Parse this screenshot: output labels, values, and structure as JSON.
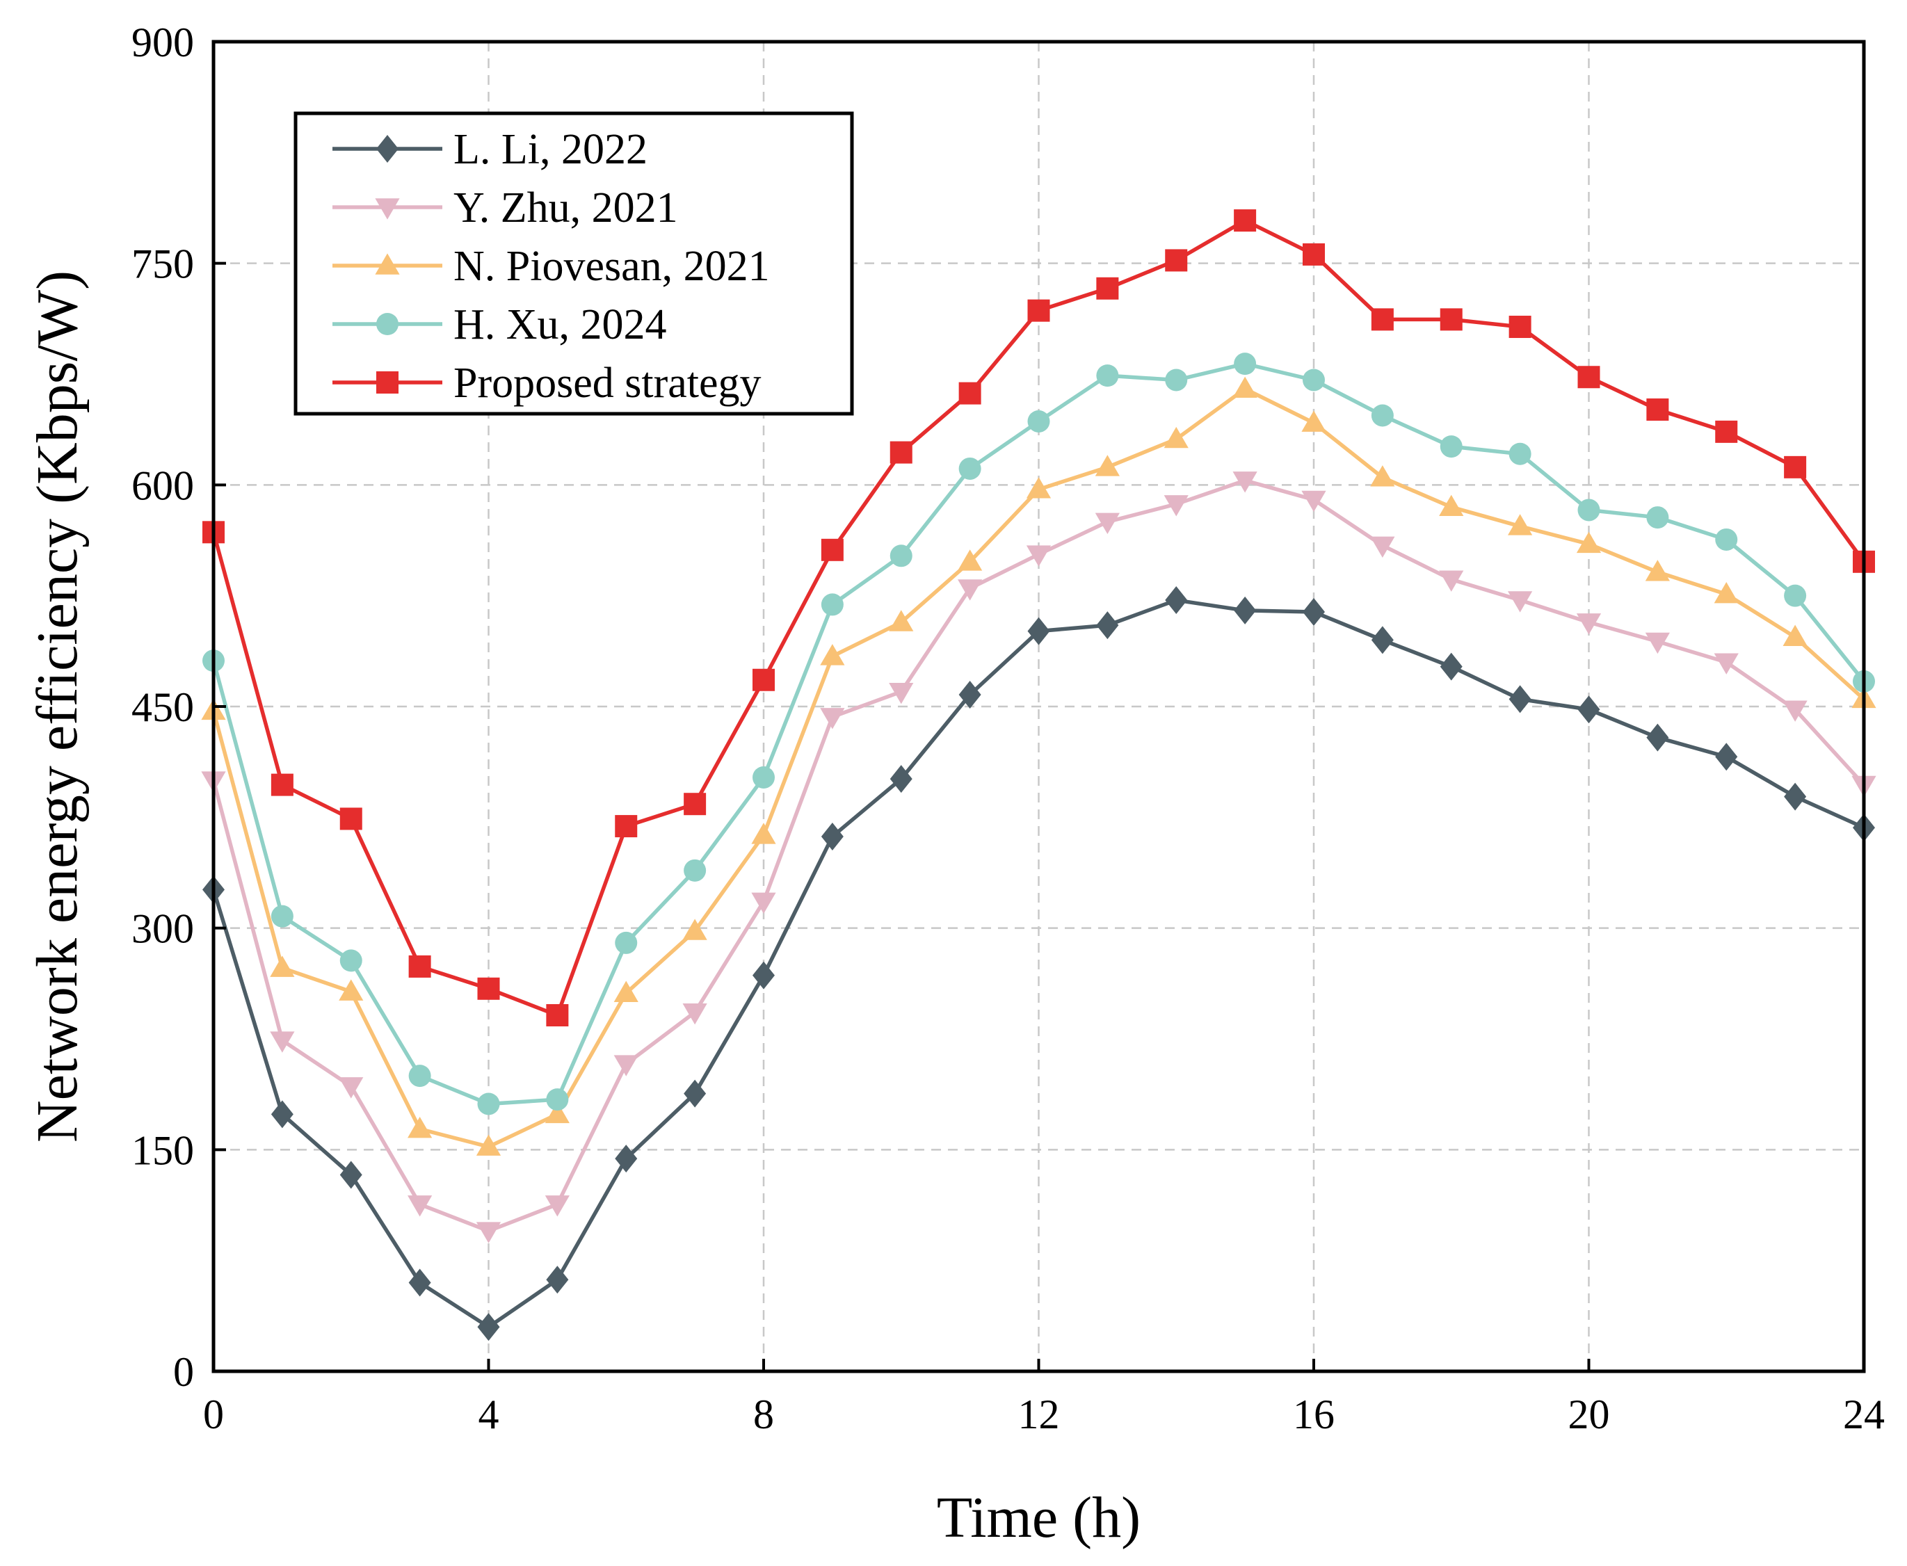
{
  "chart_data": {
    "type": "line",
    "title": "",
    "xlabel": "Time (h)",
    "ylabel": "Network energy efficiency (Kbps/W)",
    "xlim": [
      0,
      24
    ],
    "ylim": [
      0,
      900
    ],
    "xticks": [
      0,
      4,
      8,
      12,
      16,
      20,
      24
    ],
    "yticks": [
      0,
      150,
      300,
      450,
      600,
      750,
      900
    ],
    "grid": true,
    "legend_position": "top-left",
    "x": [
      0,
      1,
      2,
      3,
      4,
      5,
      6,
      7,
      8,
      9,
      10,
      11,
      12,
      13,
      14,
      15,
      16,
      17,
      18,
      19,
      20,
      21,
      22,
      23,
      24
    ],
    "series": [
      {
        "name": "L. Li, 2022",
        "color": "#4d5d66",
        "marker": "diamond",
        "values": [
          326,
          174,
          133,
          60,
          30,
          62,
          144,
          188,
          268,
          362,
          401,
          458,
          501,
          505,
          522,
          515,
          514,
          495,
          477,
          455,
          448,
          429,
          416,
          389,
          368
        ]
      },
      {
        "name": "Y. Zhu, 2021",
        "color": "#e3b5c5",
        "marker": "triangle-down",
        "values": [
          400,
          224,
          193,
          113,
          95,
          113,
          208,
          243,
          318,
          443,
          460,
          530,
          553,
          575,
          587,
          603,
          590,
          559,
          536,
          522,
          507,
          494,
          480,
          448,
          397
        ]
      },
      {
        "name": "N. Piovesan, 2021",
        "color": "#f9c174",
        "marker": "triangle-up",
        "values": [
          447,
          273,
          257,
          164,
          152,
          174,
          256,
          298,
          363,
          484,
          507,
          548,
          597,
          612,
          631,
          665,
          642,
          605,
          585,
          572,
          560,
          541,
          526,
          497,
          455
        ]
      },
      {
        "name": "H. Xu, 2024",
        "color": "#8fd0c6",
        "marker": "circle",
        "values": [
          481,
          308,
          278,
          200,
          181,
          184,
          290,
          339,
          402,
          519,
          552,
          611,
          643,
          674,
          671,
          682,
          671,
          647,
          626,
          621,
          583,
          578,
          563,
          525,
          467
        ]
      },
      {
        "name": "Proposed strategy",
        "color": "#e52d2d",
        "marker": "square",
        "values": [
          568,
          397,
          374,
          274,
          259,
          241,
          369,
          384,
          468,
          556,
          622,
          662,
          718,
          733,
          752,
          779,
          756,
          712,
          712,
          707,
          673,
          651,
          636,
          612,
          548
        ]
      }
    ]
  }
}
